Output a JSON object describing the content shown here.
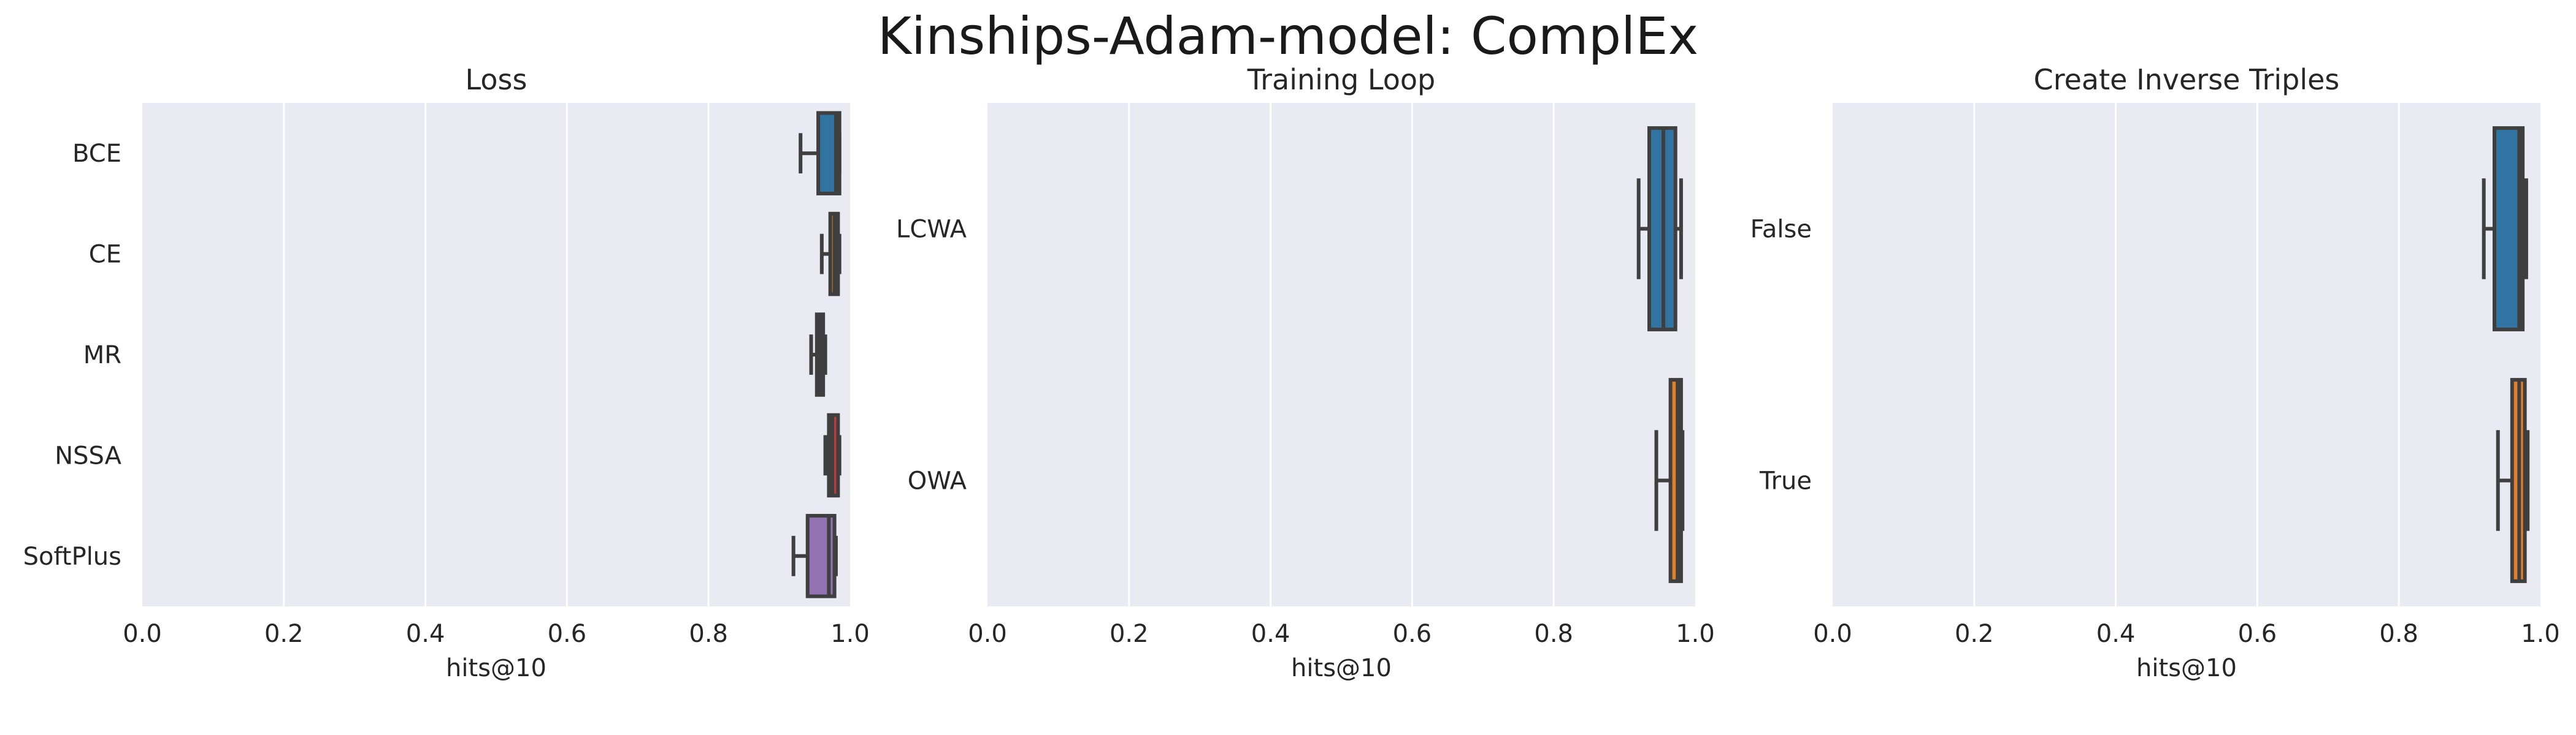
{
  "title": "Kinships-Adam-model: ComplEx",
  "chart_data": [
    {
      "type": "box",
      "title": "Loss",
      "xlabel": "hits@10",
      "ylabel": "",
      "xlim": [
        0.0,
        1.0
      ],
      "xticks": [
        "0.0",
        "0.2",
        "0.4",
        "0.6",
        "0.8",
        "1.0"
      ],
      "grid": true,
      "categories": [
        "BCE",
        "CE",
        "MR",
        "NSSA",
        "SoftPlus"
      ],
      "boxes": [
        {
          "label": "BCE",
          "whisker_low": 0.93,
          "q1": 0.955,
          "median": 0.98,
          "q3": 0.985,
          "whisker_high": 0.985,
          "color": "#3274a1"
        },
        {
          "label": "CE",
          "whisker_low": 0.96,
          "q1": 0.972,
          "median": 0.978,
          "q3": 0.983,
          "whisker_high": 0.985,
          "color": "#e1812c"
        },
        {
          "label": "MR",
          "whisker_low": 0.945,
          "q1": 0.953,
          "median": 0.957,
          "q3": 0.962,
          "whisker_high": 0.965,
          "color": "#3a923a"
        },
        {
          "label": "NSSA",
          "whisker_low": 0.965,
          "q1": 0.97,
          "median": 0.975,
          "q3": 0.983,
          "whisker_high": 0.985,
          "color": "#c03d3e"
        },
        {
          "label": "SoftPlus",
          "whisker_low": 0.92,
          "q1": 0.94,
          "median": 0.97,
          "q3": 0.978,
          "whisker_high": 0.98,
          "color": "#9372b2"
        }
      ]
    },
    {
      "type": "box",
      "title": "Training Loop",
      "xlabel": "hits@10",
      "ylabel": "",
      "xlim": [
        0.0,
        1.0
      ],
      "xticks": [
        "0.0",
        "0.2",
        "0.4",
        "0.6",
        "0.8",
        "1.0"
      ],
      "grid": true,
      "categories": [
        "LCWA",
        "OWA"
      ],
      "boxes": [
        {
          "label": "LCWA",
          "whisker_low": 0.92,
          "q1": 0.935,
          "median": 0.955,
          "q3": 0.972,
          "whisker_high": 0.98,
          "color": "#3274a1"
        },
        {
          "label": "OWA",
          "whisker_low": 0.945,
          "q1": 0.965,
          "median": 0.975,
          "q3": 0.98,
          "whisker_high": 0.982,
          "color": "#e1812c"
        }
      ]
    },
    {
      "type": "box",
      "title": "Create Inverse Triples",
      "xlabel": "hits@10",
      "ylabel": "",
      "xlim": [
        0.0,
        1.0
      ],
      "xticks": [
        "0.0",
        "0.2",
        "0.4",
        "0.6",
        "0.8",
        "1.0"
      ],
      "grid": true,
      "categories": [
        "False",
        "True"
      ],
      "boxes": [
        {
          "label": "False",
          "whisker_low": 0.92,
          "q1": 0.935,
          "median": 0.97,
          "q3": 0.975,
          "whisker_high": 0.98,
          "color": "#3274a1"
        },
        {
          "label": "True",
          "whisker_low": 0.94,
          "q1": 0.96,
          "median": 0.97,
          "q3": 0.978,
          "whisker_high": 0.982,
          "color": "#e1812c"
        }
      ]
    }
  ]
}
